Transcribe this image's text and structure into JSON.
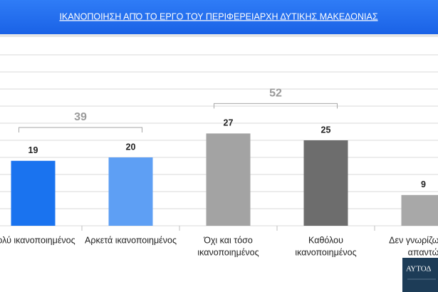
{
  "chart_data": {
    "type": "bar",
    "title": "ΙΚΑΝΟΠΟΙΗΣΗ ΑΠΌ ΤΟ ΕΡΓΟ ΤΟΥ ΠΕΡΙΦΕΡΕΙΑΡΧΗ ΔΥΤΙΚΗΣ ΜΑΚΕΔΟΝΙΑΣ",
    "categories": [
      [
        "Πολύ ικανοποιημένος"
      ],
      [
        "Αρκετά ικανοποιημένος"
      ],
      [
        "Όχι και τόσο",
        "ικανοποιημένος"
      ],
      [
        "Καθόλου",
        "ικανοποιημένος"
      ],
      [
        "Δεν γνωρίζω/ Δεν",
        "απαντώ"
      ]
    ],
    "values": [
      19,
      20,
      27,
      25,
      9
    ],
    "colors": [
      "#1a73ef",
      "#5e9ff4",
      "#a3a3a3",
      "#6d6d6d",
      "#a8a8a8"
    ],
    "groups": [
      {
        "value": 39,
        "members": [
          0,
          1
        ]
      },
      {
        "value": 52,
        "members": [
          2,
          3
        ]
      }
    ],
    "ylim": [
      0,
      50
    ],
    "yticks": [
      0,
      5,
      10,
      15,
      20,
      25,
      30,
      35,
      40,
      45,
      50
    ],
    "grid": true,
    "logo": "ΑΥΤΟΔ"
  }
}
